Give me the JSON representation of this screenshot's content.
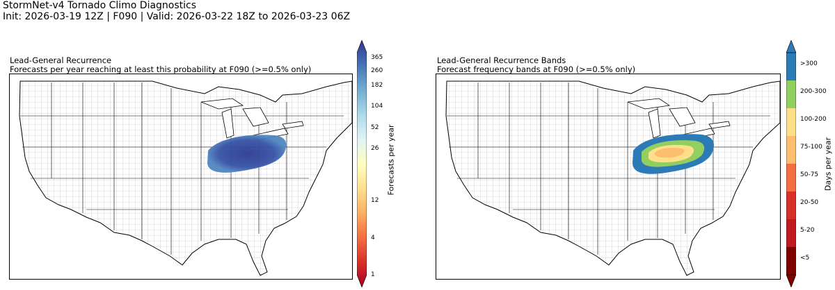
{
  "header": {
    "title": "StormNet-v4 Tornado Climo Diagnostics",
    "subtitle": "Init: 2026-03-19 12Z | F090 | Valid: 2026-03-22 18Z to 2026-03-23 06Z"
  },
  "left_panel": {
    "title_line1": "Lead-General Recurrence",
    "title_line2": "Forecasts per year reaching at least this probability at F090 (>=0.5% only)",
    "colorbar": {
      "label": "Forecasts per year",
      "ticks": [
        "365",
        "260",
        "182",
        "104",
        "52",
        "26",
        "12",
        "4",
        "1"
      ],
      "extend": "both",
      "colors": [
        "#a50026",
        "#d73027",
        "#f46d43",
        "#fdae61",
        "#fee090",
        "#ffffbf",
        "#e0f3f8",
        "#abd9e9",
        "#74add1",
        "#4575b4",
        "#313695"
      ]
    }
  },
  "right_panel": {
    "title_line1": "Lead-General Recurrence Bands",
    "title_line2": "Forecast frequency bands at F090 (>=0.5% only)",
    "colorbar": {
      "label": "Days per year",
      "bands": [
        ">300",
        "200-300",
        "100-200",
        "75-100",
        "50-75",
        "20-50",
        "5-20",
        "<5"
      ],
      "band_colors": [
        "#2c7bb6",
        "#91cf60",
        "#fee08b",
        "#fdbf6f",
        "#f46d43",
        "#d73027",
        "#c2191f",
        "#7f0000"
      ],
      "extend": "both"
    }
  }
}
